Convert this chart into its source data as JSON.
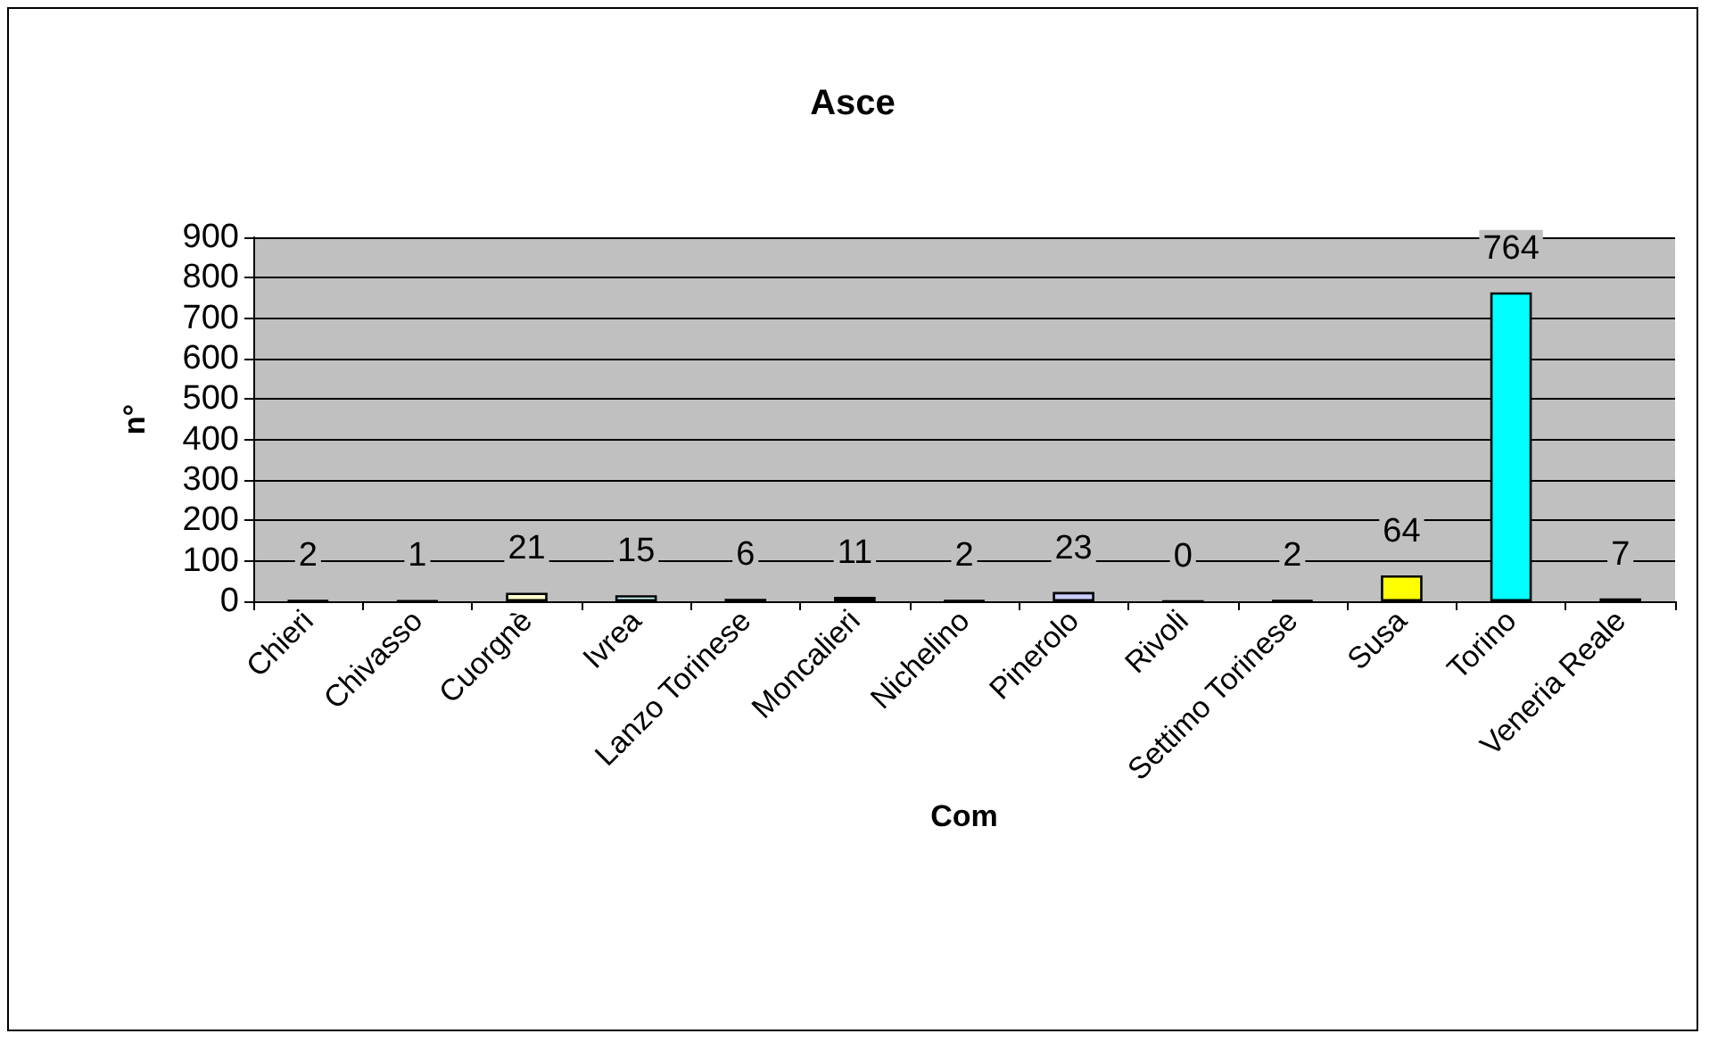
{
  "chart_data": {
    "type": "bar",
    "title": "Asce",
    "xlabel": "Com",
    "ylabel": "n°",
    "categories": [
      "Chieri",
      "Chivasso",
      "Cuorgnè",
      "Ivrea",
      "Lanzo Torinese",
      "Moncalieri",
      "Nichelino",
      "Pinerolo",
      "Rivoli",
      "Settimo Torinese",
      "Susa",
      "Torino",
      "Veneria Reale"
    ],
    "values": [
      2,
      1,
      21,
      15,
      6,
      11,
      2,
      23,
      0,
      2,
      64,
      764,
      7
    ],
    "colors": [
      "#000000",
      "#000000",
      "#ffffcc",
      "#ccffff",
      "#000000",
      "#000000",
      "#000000",
      "#ccccff",
      "#000000",
      "#000000",
      "#ffff00",
      "#00ffff",
      "#000000"
    ],
    "ylim": [
      0,
      900
    ],
    "yticks": [
      0,
      100,
      200,
      300,
      400,
      500,
      600,
      700,
      800,
      900
    ],
    "grid": "y",
    "data_labels": true
  }
}
